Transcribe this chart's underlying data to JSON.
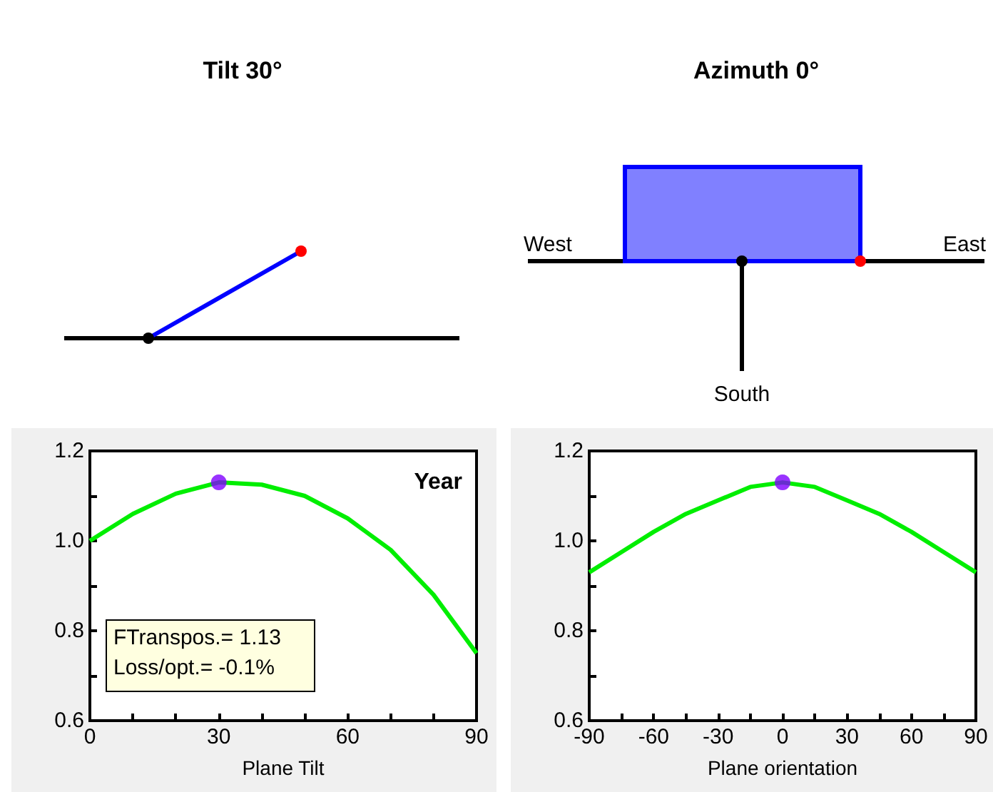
{
  "chart_data": [
    {
      "type": "other",
      "title": "Tilt 30°"
    },
    {
      "type": "other",
      "title": "Azimuth 0°",
      "annotations": [
        "West",
        "East",
        "South"
      ]
    },
    {
      "type": "line",
      "xlabel": "Plane Tilt",
      "x": [
        0,
        10,
        20,
        30,
        40,
        50,
        60,
        70,
        80,
        90
      ],
      "grid": false,
      "series": [
        {
          "color": "#00ee00",
          "values": [
            1.0,
            1.06,
            1.105,
            1.13,
            1.125,
            1.1,
            1.05,
            0.98,
            0.88,
            0.75
          ]
        },
        {
          "type": "scatter",
          "color": "#8000ff",
          "x": [
            30
          ],
          "values": [
            1.13
          ]
        }
      ],
      "xlim": [
        0,
        90
      ],
      "xticks": [
        0,
        {
          "value": 10,
          "label": null
        },
        {
          "value": 20,
          "label": null
        },
        30,
        {
          "value": 40,
          "label": null
        },
        {
          "value": 50,
          "label": null
        },
        60,
        {
          "value": 70,
          "label": null
        },
        {
          "value": 80,
          "label": null
        },
        90
      ],
      "ylim": [
        0.6,
        1.2
      ],
      "yticks": [
        0.6,
        {
          "value": 0.7,
          "label": null
        },
        0.8,
        {
          "value": 0.9,
          "label": null
        },
        {
          "value": 1,
          "label": "1.0"
        },
        {
          "value": 1.1,
          "label": null
        },
        1.2
      ],
      "annotations": [
        "Year",
        "FTranspos.= 1.13",
        "Loss/opt.= -0.1%"
      ]
    },
    {
      "type": "line",
      "xlabel": "Plane orientation",
      "x": [
        -90,
        -75,
        -60,
        -45,
        -30,
        -15,
        0,
        15,
        30,
        45,
        60,
        75,
        90
      ],
      "grid": false,
      "series": [
        {
          "color": "#00ee00",
          "values": [
            0.93,
            0.975,
            1.02,
            1.06,
            1.09,
            1.12,
            1.13,
            1.12,
            1.09,
            1.06,
            1.02,
            0.975,
            0.93
          ]
        },
        {
          "type": "scatter",
          "color": "#8000ff",
          "x": [
            0
          ],
          "values": [
            1.13
          ]
        }
      ],
      "xlim": [
        -90,
        90
      ],
      "xticks": [
        -90,
        {
          "value": -75,
          "label": null
        },
        -60,
        {
          "value": -45,
          "label": null
        },
        -30,
        {
          "value": -15,
          "label": null
        },
        0,
        {
          "value": 15,
          "label": null
        },
        30,
        {
          "value": 45,
          "label": null
        },
        60,
        {
          "value": 75,
          "label": null
        },
        90
      ],
      "ylim": [
        0.6,
        1.2
      ],
      "yticks": [
        0.6,
        {
          "value": 0.7,
          "label": null
        },
        0.8,
        {
          "value": 0.9,
          "label": null
        },
        {
          "value": 1,
          "label": "1.0"
        },
        {
          "value": 1.1,
          "label": null
        },
        1.2
      ]
    }
  ]
}
